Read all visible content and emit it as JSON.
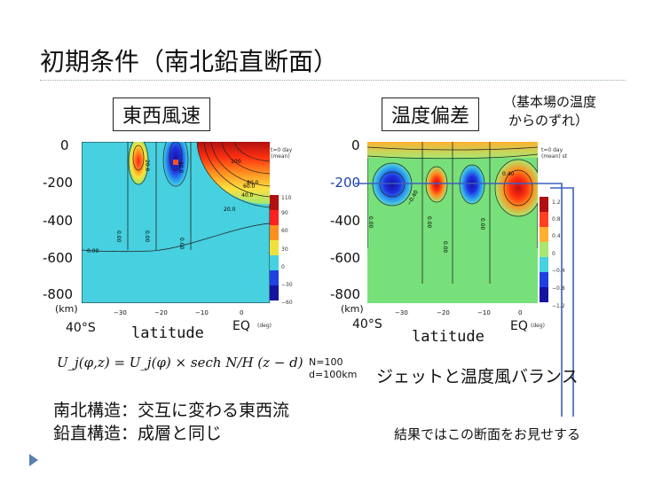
{
  "slide": {
    "title": "初期条件（南北鉛直断面）",
    "left_panel_label": "東西風速",
    "right_panel_label": "温度偏差",
    "right_note_line1": "（基本場の温度",
    "right_note_line2": "からのずれ）",
    "y_ticks": [
      "0",
      "-200",
      "-400",
      "-600",
      "-800"
    ],
    "y_unit": "(km)",
    "x_start_label": "40°S",
    "x_axis_label": "latitude",
    "x_end_label": "EQ",
    "x_unit": "(deg)",
    "x_ticks": [
      "−30",
      "−20",
      "−10",
      "0"
    ],
    "formula": "U_j(φ,z) = U_j(φ) × sech N/H (z − d)",
    "params_line1": "N=100",
    "params_line2": "d=100km",
    "balance_text": "ジェットと温度風バランス",
    "structure_line1": "南北構造：交互に変わる東西流",
    "structure_line2": "鉛直構造：成層と同じ",
    "result_note": "結果ではこの断面をお見せする"
  },
  "left_plot": {
    "legend_title": "t=0 day (mean)",
    "colorbar_ticks": [
      "110",
      "90",
      "60",
      "30",
      "0",
      "−30",
      "−60"
    ],
    "contour_labels": [
      "100.",
      "80.0",
      "60.0",
      "40.0",
      "20.0",
      "0.00",
      "0.00",
      "0.00",
      "0.00",
      "20.0",
      "20.0"
    ]
  },
  "right_plot": {
    "legend_title": "t=0 day (mean) st",
    "colorbar_ticks": [
      "1.2",
      "0.8",
      "0.4",
      "0",
      "−0.4",
      "−0.8",
      "−1.2"
    ],
    "contour_labels": [
      "0.40",
      "−0.40",
      "0.00",
      "0.00",
      "0.00",
      "0.00"
    ]
  },
  "colors": {
    "cyan_background": "#46d0e0",
    "callout_line": "#3a5fc0",
    "highlight_y": "#1a3fb5"
  }
}
